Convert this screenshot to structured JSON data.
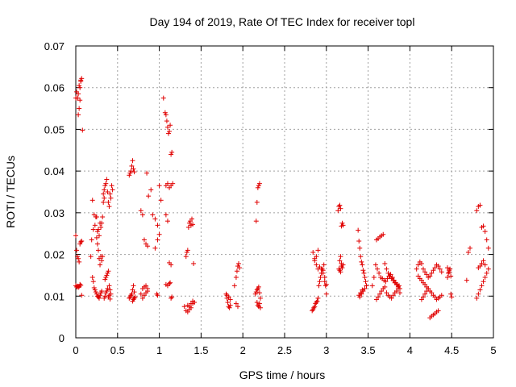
{
  "chart_data": {
    "type": "scatter",
    "title": "Day 194 of 2019, Rate Of TEC Index for receiver topl",
    "xlabel": "GPS time / hours",
    "ylabel": "ROTI / TECUs",
    "xlim": [
      0,
      5
    ],
    "ylim": [
      0,
      0.07
    ],
    "xticks": [
      0,
      0.5,
      1,
      1.5,
      2,
      2.5,
      3,
      3.5,
      4,
      4.5,
      5
    ],
    "xtick_labels": [
      "0",
      "0.5",
      "1",
      "1.5",
      "2",
      "2.5",
      "3",
      "3.5",
      "4",
      "4.5",
      "5"
    ],
    "yticks": [
      0,
      0.01,
      0.02,
      0.03,
      0.04,
      0.05,
      0.06,
      0.07
    ],
    "ytick_labels": [
      "0",
      "0.01",
      "0.02",
      "0.03",
      "0.04",
      "0.05",
      "0.06",
      "0.07"
    ],
    "grid": true,
    "marker": "+",
    "color": "#e00000",
    "series": [
      {
        "name": "ROTI",
        "x": [
          0.0,
          0.01,
          0.02,
          0.03,
          0.04,
          0.05,
          0.06,
          0.07,
          0.0,
          0.01,
          0.02,
          0.03,
          0.04,
          0.05,
          0.06,
          0.07,
          0.02,
          0.03,
          0.04,
          0.05,
          0.06,
          0.07,
          0.08,
          0.0,
          0.01,
          0.02,
          0.03,
          0.04,
          0.05,
          0.06,
          0.18,
          0.19,
          0.2,
          0.21,
          0.22,
          0.23,
          0.24,
          0.25,
          0.26,
          0.27,
          0.28,
          0.29,
          0.3,
          0.31,
          0.32,
          0.2,
          0.21,
          0.22,
          0.23,
          0.24,
          0.25,
          0.26,
          0.27,
          0.28,
          0.29,
          0.3,
          0.31,
          0.25,
          0.26,
          0.27,
          0.28,
          0.29,
          0.3,
          0.31,
          0.32,
          0.33,
          0.34,
          0.33,
          0.34,
          0.35,
          0.36,
          0.37,
          0.38,
          0.39,
          0.4,
          0.41,
          0.42,
          0.43,
          0.44,
          0.35,
          0.36,
          0.37,
          0.38,
          0.39,
          0.4,
          0.41,
          0.42,
          0.34,
          0.35,
          0.36,
          0.37,
          0.38,
          0.39,
          0.4,
          0.41,
          0.64,
          0.65,
          0.66,
          0.67,
          0.68,
          0.69,
          0.7,
          0.64,
          0.65,
          0.66,
          0.67,
          0.68,
          0.69,
          0.7,
          0.68,
          0.69,
          0.7,
          0.71,
          0.78,
          0.8,
          0.82,
          0.84,
          0.86,
          0.8,
          0.82,
          0.84,
          0.86,
          0.78,
          0.8,
          0.82,
          0.84,
          0.86,
          0.85,
          0.87,
          0.9,
          0.92,
          0.95,
          0.98,
          1.0,
          1.02,
          0.95,
          0.98,
          1.0,
          0.97,
          0.98,
          1.05,
          1.07,
          1.08,
          1.09,
          1.1,
          1.11,
          1.12,
          1.13,
          1.14,
          1.15,
          1.08,
          1.1,
          1.12,
          1.14,
          1.16,
          1.08,
          1.1,
          1.12,
          1.14,
          1.08,
          1.1,
          1.12,
          1.13,
          1.14,
          1.15,
          1.32,
          1.33,
          1.34,
          1.35,
          1.36,
          1.37,
          1.38,
          1.39,
          1.4,
          1.41,
          1.34,
          1.36,
          1.38,
          1.4,
          1.3,
          1.32,
          1.34,
          1.36,
          1.38,
          1.4,
          1.42,
          1.8,
          1.81,
          1.82,
          1.83,
          1.84,
          1.85,
          1.81,
          1.83,
          1.85,
          1.9,
          1.92,
          1.93,
          1.94,
          1.95,
          1.96,
          1.92,
          1.94,
          2.15,
          2.16,
          2.17,
          2.18,
          2.19,
          2.2,
          2.21,
          2.16,
          2.17,
          2.18,
          2.19,
          2.2,
          2.17,
          2.18,
          2.19,
          2.2,
          2.21,
          2.83,
          2.84,
          2.85,
          2.86,
          2.87,
          2.88,
          2.89,
          2.9,
          2.91,
          2.92,
          2.93,
          2.94,
          2.95,
          2.96,
          2.97,
          2.98,
          2.99,
          3.0,
          2.86,
          2.88,
          2.9,
          2.92,
          2.94,
          2.96,
          2.98,
          3.0,
          2.84,
          2.86,
          2.88,
          2.9,
          3.14,
          3.15,
          3.16,
          3.17,
          3.18,
          3.19,
          3.2,
          3.16,
          3.17,
          3.18,
          3.19,
          3.2,
          3.15,
          3.16,
          3.17,
          3.18,
          3.38,
          3.39,
          3.4,
          3.41,
          3.42,
          3.43,
          3.44,
          3.45,
          3.46,
          3.47,
          3.48,
          3.4,
          3.42,
          3.44,
          3.46,
          3.48,
          3.39,
          3.41,
          3.43,
          3.55,
          3.57,
          3.59,
          3.61,
          3.63,
          3.65,
          3.67,
          3.69,
          3.71,
          3.73,
          3.75,
          3.77,
          3.79,
          3.81,
          3.83,
          3.85,
          3.87,
          3.6,
          3.62,
          3.64,
          3.66,
          3.68,
          3.6,
          3.62,
          3.64,
          3.66,
          3.68,
          3.7,
          3.72,
          3.74,
          3.76,
          3.78,
          3.8,
          3.82,
          3.84,
          3.86,
          3.88,
          3.7,
          3.72,
          3.74,
          3.76,
          3.78,
          3.8,
          3.82,
          3.84,
          3.86,
          3.88,
          4.08,
          4.1,
          4.12,
          4.14,
          4.16,
          4.18,
          4.2,
          4.22,
          4.24,
          4.26,
          4.28,
          4.3,
          4.32,
          4.34,
          4.36,
          4.38,
          4.1,
          4.12,
          4.14,
          4.16,
          4.18,
          4.2,
          4.22,
          4.24,
          4.26,
          4.28,
          4.3,
          4.32,
          4.34,
          4.36,
          4.38,
          4.24,
          4.26,
          4.28,
          4.3,
          4.32,
          4.34,
          4.14,
          4.16,
          4.18,
          4.2,
          4.22,
          4.45,
          4.46,
          4.47,
          4.48,
          4.49,
          4.5,
          4.45,
          4.47,
          4.49,
          4.7,
          4.72,
          4.68,
          4.8,
          4.82,
          4.84,
          4.86,
          4.88,
          4.9,
          4.92,
          4.94,
          4.8,
          4.82,
          4.84,
          4.86,
          4.88,
          4.9,
          4.92,
          4.94,
          4.82,
          4.84,
          4.86,
          4.88,
          4.9
        ],
        "y": [
          0.0125,
          0.0122,
          0.0124,
          0.0121,
          0.0123,
          0.0128,
          0.0126,
          0.0102,
          0.0245,
          0.021,
          0.0195,
          0.019,
          0.0182,
          0.0225,
          0.023,
          0.0232,
          0.0575,
          0.0535,
          0.055,
          0.057,
          0.0618,
          0.0622,
          0.0498,
          0.0575,
          0.059,
          0.0575,
          0.0585,
          0.0605,
          0.06,
          0.0615,
          0.0195,
          0.0235,
          0.033,
          0.026,
          0.0295,
          0.027,
          0.029,
          0.024,
          0.0225,
          0.021,
          0.019,
          0.0175,
          0.0195,
          0.0185,
          0.0195,
          0.0145,
          0.0135,
          0.012,
          0.0115,
          0.011,
          0.0105,
          0.01,
          0.0098,
          0.0095,
          0.0102,
          0.0108,
          0.0112,
          0.029,
          0.0255,
          0.026,
          0.0245,
          0.0275,
          0.0265,
          0.0275,
          0.029,
          0.0325,
          0.0335,
          0.0345,
          0.0355,
          0.0365,
          0.037,
          0.038,
          0.035,
          0.0325,
          0.0315,
          0.0345,
          0.0335,
          0.0365,
          0.0355,
          0.014,
          0.0145,
          0.015,
          0.0155,
          0.016,
          0.0125,
          0.0115,
          0.0105,
          0.0095,
          0.01,
          0.0108,
          0.0112,
          0.0118,
          0.0098,
          0.0102,
          0.0093,
          0.039,
          0.0395,
          0.04,
          0.0412,
          0.0425,
          0.0405,
          0.0398,
          0.0095,
          0.0098,
          0.0102,
          0.0105,
          0.0115,
          0.0125,
          0.011,
          0.0088,
          0.0092,
          0.0095,
          0.0098,
          0.0305,
          0.0295,
          0.0235,
          0.0225,
          0.022,
          0.0095,
          0.0102,
          0.0108,
          0.0112,
          0.0105,
          0.0118,
          0.0122,
          0.0125,
          0.0118,
          0.0395,
          0.034,
          0.0355,
          0.0295,
          0.0285,
          0.027,
          0.0365,
          0.033,
          0.0215,
          0.0235,
          0.0248,
          0.0105,
          0.0102,
          0.0575,
          0.054,
          0.0535,
          0.052,
          0.0505,
          0.049,
          0.0495,
          0.051,
          0.044,
          0.0445,
          0.0365,
          0.037,
          0.036,
          0.0365,
          0.037,
          0.0295,
          0.028,
          0.018,
          0.0175,
          0.0128,
          0.0125,
          0.013,
          0.0132,
          0.0095,
          0.0098,
          0.0195,
          0.0205,
          0.021,
          0.0265,
          0.0275,
          0.028,
          0.027,
          0.0285,
          0.0272,
          0.0178,
          0.0078,
          0.0075,
          0.0082,
          0.0088,
          0.0075,
          0.0065,
          0.0062,
          0.0068,
          0.0072,
          0.0082,
          0.0085,
          0.0105,
          0.0095,
          0.0085,
          0.0075,
          0.0072,
          0.0078,
          0.0102,
          0.0098,
          0.0092,
          0.0125,
          0.0145,
          0.016,
          0.0172,
          0.0178,
          0.0168,
          0.0082,
          0.0075,
          0.0105,
          0.011,
          0.0115,
          0.0118,
          0.0122,
          0.0108,
          0.0095,
          0.028,
          0.0325,
          0.036,
          0.0365,
          0.037,
          0.0085,
          0.0078,
          0.0075,
          0.0082,
          0.0072,
          0.0065,
          0.0068,
          0.0072,
          0.0075,
          0.0082,
          0.0085,
          0.0088,
          0.0095,
          0.0125,
          0.0135,
          0.0145,
          0.0155,
          0.0165,
          0.0162,
          0.0175,
          0.0135,
          0.0125,
          0.0128,
          0.0185,
          0.0195,
          0.021,
          0.017,
          0.0165,
          0.0155,
          0.0145,
          0.0105,
          0.0205,
          0.019,
          0.0175,
          0.0165,
          0.0305,
          0.0315,
          0.0318,
          0.031,
          0.0178,
          0.0168,
          0.0175,
          0.0185,
          0.0195,
          0.0268,
          0.0275,
          0.027,
          0.0165,
          0.0162,
          0.0158,
          0.0172,
          0.0258,
          0.0232,
          0.0215,
          0.0195,
          0.0182,
          0.0175,
          0.0162,
          0.0155,
          0.0145,
          0.0135,
          0.0125,
          0.0098,
          0.0105,
          0.0112,
          0.0118,
          0.0125,
          0.0102,
          0.0108,
          0.0115,
          0.0125,
          0.0145,
          0.0175,
          0.0165,
          0.0155,
          0.0145,
          0.0142,
          0.0138,
          0.0135,
          0.0142,
          0.0148,
          0.0152,
          0.0145,
          0.0138,
          0.0132,
          0.0128,
          0.0125,
          0.0235,
          0.0238,
          0.0242,
          0.0245,
          0.0248,
          0.0092,
          0.0098,
          0.0105,
          0.0112,
          0.0118,
          0.0122,
          0.0108,
          0.0102,
          0.0098,
          0.0095,
          0.0102,
          0.0108,
          0.0112,
          0.0118,
          0.0108,
          0.0178,
          0.0165,
          0.0155,
          0.0148,
          0.0142,
          0.0138,
          0.0132,
          0.0128,
          0.0122,
          0.0118,
          0.0165,
          0.0175,
          0.0182,
          0.0178,
          0.0165,
          0.0158,
          0.0152,
          0.0145,
          0.0148,
          0.0155,
          0.0162,
          0.0168,
          0.0175,
          0.0172,
          0.0165,
          0.0158,
          0.0148,
          0.0142,
          0.0138,
          0.0132,
          0.0128,
          0.0122,
          0.0118,
          0.0112,
          0.0108,
          0.0102,
          0.0098,
          0.0092,
          0.0095,
          0.0098,
          0.0102,
          0.0048,
          0.0052,
          0.0055,
          0.0058,
          0.0062,
          0.0065,
          0.0092,
          0.0098,
          0.0105,
          0.0112,
          0.0118,
          0.0145,
          0.0155,
          0.0162,
          0.0165,
          0.0105,
          0.0098,
          0.0168,
          0.0158,
          0.0148,
          0.0205,
          0.0215,
          0.0138,
          0.0305,
          0.0315,
          0.0318,
          0.0265,
          0.0268,
          0.0255,
          0.0235,
          0.0215,
          0.0095,
          0.0105,
          0.0115,
          0.0125,
          0.0135,
          0.0145,
          0.0155,
          0.0165,
          0.0168,
          0.0172,
          0.0178,
          0.0185,
          0.0175
        ]
      }
    ]
  }
}
